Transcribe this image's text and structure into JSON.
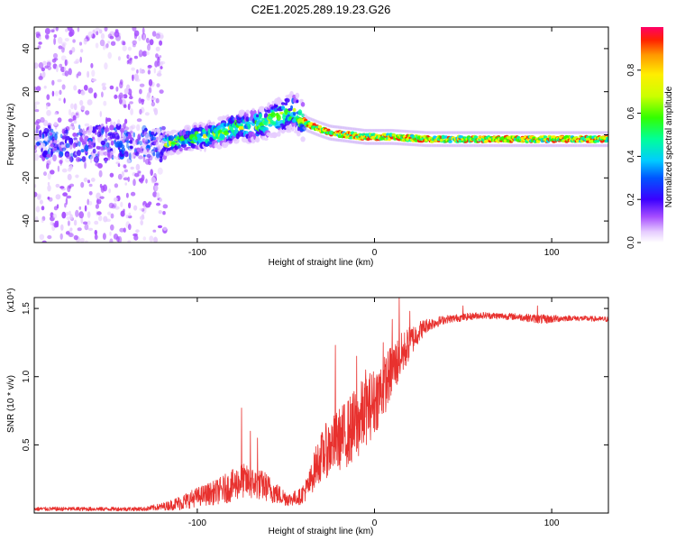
{
  "figure": {
    "title": "C2E1.2025.289.19.23.G26"
  },
  "colors": {
    "snr_line": "#e8312e",
    "spectrogram_halo": "#c9a8f5",
    "spectrogram_core": "#6a00e8"
  },
  "chart_data": [
    {
      "type": "heatmap",
      "name": "spectrogram",
      "xlabel": "Height of straight line (km)",
      "ylabel": "Frequency (Hz)",
      "xlim": [
        -192,
        132
      ],
      "ylim": [
        -50,
        50
      ],
      "xticks": [
        {
          "v": -100,
          "label": "-100"
        },
        {
          "v": 0,
          "label": "0"
        },
        {
          "v": 100,
          "label": "100"
        }
      ],
      "yticks": [
        {
          "v": -40,
          "label": "-40"
        },
        {
          "v": -20,
          "label": "-20"
        },
        {
          "v": 0,
          "label": "0"
        },
        {
          "v": 20,
          "label": "20"
        },
        {
          "v": 40,
          "label": "40"
        }
      ],
      "colorbar": {
        "label": "Normalized spectral amplitude",
        "range": [
          0,
          1
        ],
        "ticks": [
          {
            "v": 0.0,
            "label": "0.0"
          },
          {
            "v": 0.2,
            "label": "0.2"
          },
          {
            "v": 0.4,
            "label": "0.4"
          },
          {
            "v": 0.6,
            "label": "0.6"
          },
          {
            "v": 0.8,
            "label": "0.8"
          }
        ]
      },
      "ridge": [
        [
          -118,
          -4
        ],
        [
          -110,
          -3
        ],
        [
          -100,
          -1
        ],
        [
          -90,
          0
        ],
        [
          -80,
          3
        ],
        [
          -70,
          4
        ],
        [
          -60,
          6
        ],
        [
          -52,
          9
        ],
        [
          -45,
          11
        ],
        [
          -42,
          8
        ],
        [
          -38,
          5
        ],
        [
          -32,
          3
        ],
        [
          -25,
          1
        ],
        [
          -15,
          0
        ],
        [
          -5,
          -1
        ],
        [
          10,
          -1
        ],
        [
          30,
          -2
        ],
        [
          60,
          -2
        ],
        [
          90,
          -2
        ],
        [
          132,
          -2
        ]
      ],
      "regions": [
        {
          "from": -192,
          "to": -118,
          "description": "broadband noise"
        },
        {
          "from": -118,
          "to": -40,
          "description": "rising scintillating signal"
        },
        {
          "from": -40,
          "to": 132,
          "description": "steady tone"
        }
      ]
    },
    {
      "type": "line",
      "name": "snr",
      "xlabel": "Height of straight line (km)",
      "ylabel": "SNR (10 * v/v)",
      "scale_label": "(x10⁴)",
      "xlim": [
        -192,
        132
      ],
      "ylim": [
        0,
        1.58
      ],
      "xticks": [
        {
          "v": -100,
          "label": "-100"
        },
        {
          "v": 0,
          "label": "0"
        },
        {
          "v": 100,
          "label": "100"
        }
      ],
      "yticks": [
        {
          "v": 0.5,
          "label": "0.5"
        },
        {
          "v": 1.0,
          "label": "1.0"
        },
        {
          "v": 1.5,
          "label": "1.5"
        }
      ],
      "envelope": [
        [
          -192,
          0.03,
          0.015
        ],
        [
          -160,
          0.03,
          0.015
        ],
        [
          -130,
          0.03,
          0.015
        ],
        [
          -118,
          0.05,
          0.03
        ],
        [
          -108,
          0.08,
          0.06
        ],
        [
          -100,
          0.12,
          0.07
        ],
        [
          -90,
          0.15,
          0.09
        ],
        [
          -80,
          0.2,
          0.12
        ],
        [
          -75,
          0.24,
          0.13
        ],
        [
          -70,
          0.22,
          0.12
        ],
        [
          -62,
          0.2,
          0.11
        ],
        [
          -55,
          0.14,
          0.08
        ],
        [
          -48,
          0.1,
          0.05
        ],
        [
          -42,
          0.12,
          0.06
        ],
        [
          -37,
          0.2,
          0.1
        ],
        [
          -33,
          0.35,
          0.15
        ],
        [
          -28,
          0.45,
          0.2
        ],
        [
          -22,
          0.52,
          0.22
        ],
        [
          -16,
          0.58,
          0.25
        ],
        [
          -10,
          0.65,
          0.28
        ],
        [
          -5,
          0.75,
          0.26
        ],
        [
          0,
          0.82,
          0.25
        ],
        [
          5,
          0.92,
          0.22
        ],
        [
          10,
          1.05,
          0.2
        ],
        [
          15,
          1.15,
          0.17
        ],
        [
          20,
          1.25,
          0.12
        ],
        [
          25,
          1.33,
          0.08
        ],
        [
          30,
          1.38,
          0.05
        ],
        [
          40,
          1.42,
          0.03
        ],
        [
          60,
          1.45,
          0.025
        ],
        [
          80,
          1.44,
          0.025
        ],
        [
          95,
          1.42,
          0.035
        ],
        [
          110,
          1.43,
          0.02
        ],
        [
          132,
          1.42,
          0.02
        ]
      ],
      "spikes": [
        [
          -75,
          0.77
        ],
        [
          -70,
          0.6
        ],
        [
          -66,
          0.55
        ],
        [
          -22,
          1.23
        ],
        [
          -10,
          1.15
        ],
        [
          -5,
          1.05
        ],
        [
          5,
          1.25
        ],
        [
          10,
          1.42
        ],
        [
          14,
          1.58
        ],
        [
          20,
          1.48
        ],
        [
          50,
          1.52
        ],
        [
          92,
          1.52
        ]
      ]
    }
  ]
}
